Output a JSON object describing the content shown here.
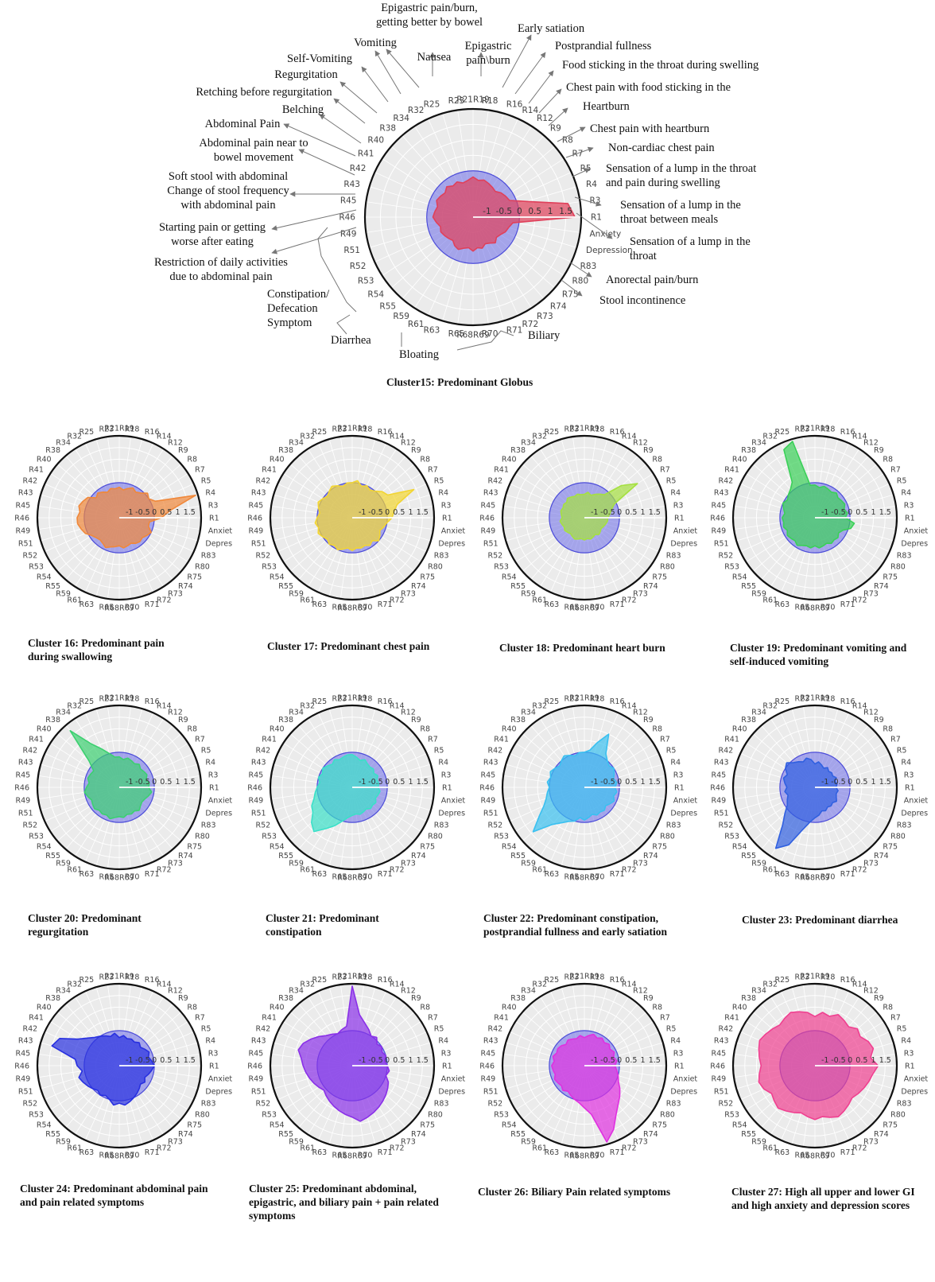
{
  "axes": [
    "R21R19",
    "R18",
    "R16",
    "R14",
    "R12",
    "R9",
    "R8",
    "R7",
    "R5",
    "R4",
    "R3",
    "R1",
    "Anxiety",
    "Depression",
    "R83",
    "R80",
    "R75",
    "R74",
    "R73",
    "R72",
    "R71",
    "R70",
    "R68R69",
    "R65",
    "R63",
    "R61",
    "R59",
    "R55",
    "R54",
    "R53",
    "R52",
    "R51",
    "R49",
    "R46",
    "R45",
    "R43",
    "R42",
    "R41",
    "R40",
    "R38",
    "R34",
    "R32",
    "R25",
    "R23"
  ],
  "small_axes": [
    "R21R19",
    "R18",
    "R16",
    "R14",
    "R12",
    "R9",
    "R8",
    "R7",
    "R5",
    "R4",
    "R3",
    "R1",
    "Anxiety",
    "Depression",
    "R83",
    "R80",
    "R75",
    "R74",
    "R73",
    "R72",
    "R71",
    "R70",
    "R68R69",
    "R65",
    "R63",
    "R61",
    "R59",
    "R55",
    "R54",
    "R53",
    "R52",
    "R51",
    "R49",
    "R46",
    "R45",
    "R43",
    "R42",
    "R41",
    "R40",
    "R38",
    "R34",
    "R32",
    "R25",
    "R23"
  ],
  "main_callouts": [
    {
      "axis": "R23",
      "text": "Nausea"
    },
    {
      "axis": "R25",
      "text": "Epigastric pain/burn, getting better by bowel"
    },
    {
      "axis": "R18",
      "text": "Epigastric pain\\burn"
    },
    {
      "axis": "R16",
      "text": "Early satiation"
    },
    {
      "axis": "R14",
      "text": "Postprandial fullness"
    },
    {
      "axis": "R12",
      "text": "Food sticking in the throat during swelling"
    },
    {
      "axis": "R9",
      "text": "Chest pain with food sticking in the"
    },
    {
      "axis": "R8",
      "text": "Heartburn"
    },
    {
      "axis": "R7",
      "text": "Chest pain with heartburn"
    },
    {
      "axis": "R5",
      "text": "Non-cardiac chest pain"
    },
    {
      "axis": "R4",
      "text": "Sensation of a lump in the throat and pain during swelling"
    },
    {
      "axis": "R3",
      "text": "Sensation of a lump in the throat between meals"
    },
    {
      "axis": "R1",
      "text": "Sensation of a lump in the throat"
    },
    {
      "axis": "R83",
      "text": "Anorectal pain/burn"
    },
    {
      "axis": "R80",
      "text": "Stool incontinence"
    },
    {
      "axis": "R32",
      "text": "Vomiting"
    },
    {
      "axis": "R34",
      "text": "Self-Vomiting"
    },
    {
      "axis": "R38",
      "text": "Regurgitation"
    },
    {
      "axis": "R40",
      "text": "Retching before regurgitation"
    },
    {
      "axis": "R41",
      "text": "Belching"
    },
    {
      "axis": "R42",
      "text": "Abdominal Pain"
    },
    {
      "axis": "R43",
      "text": "Abdominal pain near to bowel movement"
    },
    {
      "axis": "R45",
      "text": "Soft stool with abdominal Change of stool frequency with abdominal pain"
    },
    {
      "axis": "R46",
      "text": "Starting pain or getting worse after eating"
    },
    {
      "axis": "R49",
      "text": "Restriction of daily activities due to abdominal pain"
    },
    {
      "axis": "group-constipation",
      "text": "Constipation/ Defecation Symptom"
    },
    {
      "axis": "group-diarrhea",
      "text": "Diarrhea"
    },
    {
      "axis": "group-bloating",
      "text": "Bloating"
    },
    {
      "axis": "group-biliary",
      "text": "Biliary"
    }
  ],
  "chart_data": [
    {
      "id": "c15",
      "type": "radar",
      "title": "Cluster15: Predominant Globus",
      "color": "#e0405a",
      "rlim": [
        -1.5,
        2
      ],
      "ticks": [
        "-1",
        "-0.5",
        "0",
        "0.5",
        "1",
        "1.5"
      ],
      "baseline": {
        "value": 0,
        "color": "#6f6fe0"
      },
      "values": [
        -0.2,
        -0.3,
        -0.25,
        -0.3,
        -0.35,
        -0.4,
        -0.3,
        -0.25,
        -0.2,
        0.3,
        1.6,
        1.8,
        -0.2,
        -0.3,
        -0.35,
        -0.45,
        -0.5,
        -0.4,
        -0.5,
        -0.55,
        -0.45,
        -0.5,
        -0.4,
        -0.5,
        -0.45,
        -0.35,
        -0.4,
        -0.5,
        -0.45,
        -0.4,
        -0.35,
        -0.4,
        -0.3,
        -0.2,
        -0.25,
        -0.3,
        -0.2,
        -0.25,
        -0.3,
        -0.2,
        -0.3,
        -0.25,
        -0.35,
        -0.3
      ]
    },
    {
      "id": "c16",
      "type": "radar",
      "title": "Cluster 16: Predominant pain during swallowing",
      "color": "#f0883a",
      "rlim": [
        -1.5,
        2
      ],
      "ticks": [
        "-1",
        "-0.5",
        "0",
        "0.5",
        "1",
        "1.5"
      ],
      "values": [
        -0.2,
        -0.3,
        -0.2,
        -0.1,
        -0.2,
        -0.1,
        0.1,
        0.0,
        0.2,
        1.9,
        0.7,
        0.3,
        -0.2,
        -0.2,
        0.0,
        -0.1,
        -0.2,
        -0.15,
        -0.2,
        -0.3,
        -0.25,
        -0.2,
        -0.3,
        -0.25,
        -0.2,
        -0.1,
        -0.2,
        -0.25,
        -0.2,
        -0.1,
        0.1,
        0.2,
        0.3,
        0.3,
        0.2,
        0.3,
        0.2,
        0.1,
        -0.2,
        -0.1,
        -0.2,
        -0.3,
        -0.2,
        -0.25
      ]
    },
    {
      "id": "c17",
      "type": "radar",
      "title": "Cluster 17: Predominant chest pain",
      "color": "#f2d532",
      "rlim": [
        -1.5,
        2
      ],
      "ticks": [
        "-1",
        "-0.5",
        "0",
        "0.5",
        "1",
        "1.5"
      ],
      "values": [
        0.0,
        0.1,
        -0.1,
        0.0,
        -0.1,
        0.0,
        0.2,
        0.3,
        1.4,
        0.5,
        0.3,
        0.2,
        0.0,
        -0.1,
        -0.2,
        -0.1,
        0.0,
        -0.2,
        -0.1,
        -0.2,
        -0.15,
        -0.2,
        -0.1,
        -0.2,
        -0.1,
        0.0,
        -0.1,
        0.0,
        -0.1,
        0.0,
        0.1,
        0.0,
        0.1,
        0.0,
        -0.1,
        0.0,
        0.1,
        0.0,
        -0.1,
        0.0,
        0.1,
        0.0,
        -0.1,
        0.0
      ]
    },
    {
      "id": "c18",
      "type": "radar",
      "title": "Cluster 18: Predominant heart burn",
      "color": "#a5e040",
      "rlim": [
        -1.5,
        2
      ],
      "ticks": [
        "-1",
        "-0.5",
        "0",
        "0.5",
        "1",
        "1.5"
      ],
      "values": [
        -0.5,
        -0.4,
        -0.5,
        -0.4,
        -0.3,
        -0.2,
        0.6,
        1.2,
        -0.1,
        -0.3,
        -0.4,
        -0.5,
        -0.5,
        -0.55,
        -0.6,
        -0.65,
        -0.6,
        -0.55,
        -0.65,
        -0.6,
        -0.55,
        -0.6,
        -0.55,
        -0.6,
        -0.55,
        -0.5,
        -0.55,
        -0.6,
        -0.55,
        -0.5,
        -0.55,
        -0.5,
        -0.45,
        -0.55,
        -0.5,
        -0.45,
        -0.5,
        -0.45,
        -0.5,
        -0.4,
        -0.45,
        -0.5,
        -0.45,
        -0.5
      ]
    },
    {
      "id": "c19",
      "type": "radar",
      "title": "Cluster 19: Predominant vomiting and self-induced vomiting",
      "color": "#3ad058",
      "rlim": [
        -1.5,
        2
      ],
      "ticks": [
        "-1",
        "-0.5",
        "0",
        "0.5",
        "1",
        "1.5"
      ],
      "values": [
        -0.1,
        -0.2,
        -0.1,
        -0.15,
        -0.2,
        -0.1,
        -0.2,
        -0.15,
        -0.1,
        -0.2,
        -0.1,
        -0.2,
        0.2,
        0.1,
        -0.2,
        -0.3,
        -0.2,
        -0.25,
        -0.2,
        -0.3,
        -0.25,
        -0.2,
        -0.3,
        -0.2,
        -0.25,
        -0.2,
        -0.1,
        -0.2,
        -0.15,
        -0.1,
        -0.2,
        -0.1,
        -0.15,
        -0.1,
        -0.2,
        -0.1,
        0.0,
        -0.1,
        0.0,
        0.1,
        0.3,
        1.7,
        1.9,
        -0.1
      ]
    },
    {
      "id": "c20",
      "type": "radar",
      "title": "Cluster 20: Predominant regurgitation",
      "color": "#3cd070",
      "rlim": [
        -1.5,
        2
      ],
      "ticks": [
        "-1",
        "-0.5",
        "0",
        "0.5",
        "1",
        "1.5"
      ],
      "values": [
        -0.2,
        -0.3,
        -0.2,
        -0.25,
        -0.3,
        -0.2,
        -0.3,
        -0.25,
        -0.2,
        -0.3,
        -0.2,
        -0.25,
        -0.1,
        -0.2,
        -0.3,
        -0.35,
        -0.3,
        -0.2,
        -0.3,
        -0.25,
        -0.3,
        -0.2,
        -0.25,
        -0.2,
        -0.1,
        -0.2,
        -0.15,
        -0.2,
        -0.1,
        -0.15,
        -0.2,
        -0.1,
        0.0,
        -0.1,
        -0.2,
        -0.1,
        -0.15,
        -0.2,
        0.2,
        1.7,
        0.7,
        0.3,
        0.0,
        -0.2
      ]
    },
    {
      "id": "c21",
      "type": "radar",
      "title": "Cluster 21: Predominant constipation",
      "color": "#3ae0c8",
      "rlim": [
        -1.5,
        2
      ],
      "ticks": [
        "-1",
        "-0.5",
        "0",
        "0.5",
        "1",
        "1.5"
      ],
      "values": [
        -0.1,
        -0.2,
        -0.3,
        -0.2,
        -0.3,
        -0.35,
        -0.3,
        -0.4,
        -0.3,
        -0.4,
        -0.35,
        -0.4,
        -0.3,
        -0.35,
        -0.4,
        -0.3,
        -0.35,
        -0.3,
        -0.4,
        -0.35,
        -0.3,
        -0.35,
        -0.3,
        -0.2,
        0.0,
        0.3,
        0.6,
        1.0,
        0.8,
        0.5,
        0.4,
        0.2,
        0.1,
        0.0,
        -0.1,
        0.0,
        -0.1,
        0.0,
        -0.1,
        -0.2,
        -0.1,
        -0.2,
        -0.15,
        -0.1
      ]
    },
    {
      "id": "c22",
      "type": "radar",
      "title": "Cluster 22: Predominant constipation, postprandial fullness and early satiation",
      "color": "#3ac0f0",
      "rlim": [
        -1.5,
        2
      ],
      "ticks": [
        "-1",
        "-0.5",
        "0",
        "0.5",
        "1",
        "1.5"
      ],
      "values": [
        0.0,
        0.1,
        0.5,
        1.0,
        0.2,
        0.0,
        -0.1,
        0.0,
        -0.1,
        -0.2,
        -0.1,
        -0.2,
        -0.1,
        -0.2,
        -0.1,
        -0.2,
        -0.3,
        -0.2,
        -0.25,
        -0.2,
        -0.3,
        -0.2,
        -0.1,
        -0.2,
        0.0,
        0.1,
        0.3,
        0.6,
        1.4,
        0.8,
        0.4,
        0.2,
        0.1,
        0.0,
        0.1,
        0.0,
        0.1,
        0.0,
        -0.1,
        0.0,
        0.1,
        0.0,
        -0.1,
        0.0
      ]
    },
    {
      "id": "c23",
      "type": "radar",
      "title": "Cluster 23: Predominant diarrhea",
      "color": "#3060e0",
      "rlim": [
        -1.5,
        2
      ],
      "ticks": [
        "-1",
        "-0.5",
        "0",
        "0.5",
        "1",
        "1.5"
      ],
      "values": [
        -0.5,
        -0.4,
        -0.5,
        -0.6,
        -0.5,
        -0.6,
        -0.55,
        -0.6,
        -0.5,
        -0.6,
        -0.55,
        -0.6,
        -0.5,
        -0.55,
        -0.5,
        -0.4,
        -0.5,
        -0.45,
        -0.5,
        -0.4,
        -0.45,
        -0.3,
        -0.2,
        0.0,
        0.4,
        1.2,
        1.6,
        0.6,
        0.2,
        -0.1,
        -0.2,
        -0.3,
        -0.2,
        -0.3,
        -0.2,
        -0.1,
        -0.2,
        0.0,
        0.1,
        -0.1,
        -0.2,
        -0.3,
        -0.2,
        -0.3
      ]
    },
    {
      "id": "c24",
      "type": "radar",
      "title": "Cluster 24: Predominant abdominal pain and pain related symptoms",
      "color": "#2830e0",
      "rlim": [
        -1.5,
        2
      ],
      "ticks": [
        "-1",
        "-0.5",
        "0",
        "0.5",
        "1",
        "1.5"
      ],
      "values": [
        -0.3,
        -0.2,
        -0.3,
        -0.25,
        -0.3,
        -0.2,
        -0.3,
        -0.2,
        -0.1,
        -0.2,
        -0.1,
        0.0,
        -0.1,
        -0.2,
        -0.3,
        -0.2,
        -0.3,
        -0.2,
        -0.1,
        0.0,
        0.1,
        0.2,
        0.1,
        0.2,
        0.0,
        -0.1,
        0.0,
        -0.1,
        0.0,
        0.1,
        0.2,
        0.3,
        0.1,
        0.3,
        0.4,
        1.5,
        1.3,
        0.6,
        0.3,
        0.1,
        0.0,
        -0.1,
        -0.2,
        -0.1
      ]
    },
    {
      "id": "c25",
      "type": "radar",
      "title": "Cluster 25: Predominant abdominal, epigastric, and biliary pain + pain related symptoms",
      "color": "#8a30e8",
      "rlim": [
        -1.5,
        2
      ],
      "ticks": [
        "-1",
        "-0.5",
        "0",
        "0.5",
        "1",
        "1.5"
      ],
      "values": [
        1.9,
        0.7,
        0.4,
        0.2,
        0.0,
        0.1,
        -0.1,
        0.0,
        -0.1,
        0.0,
        -0.1,
        0.0,
        0.1,
        0.0,
        0.2,
        0.3,
        0.4,
        0.5,
        0.6,
        0.7,
        0.8,
        0.9,
        0.7,
        0.6,
        0.5,
        0.4,
        0.3,
        0.2,
        0.1,
        0.2,
        0.3,
        0.4,
        0.5,
        0.6,
        0.7,
        0.9,
        0.8,
        0.6,
        0.4,
        0.2,
        0.1,
        0.0,
        0.1,
        0.2
      ]
    },
    {
      "id": "c26",
      "type": "radar",
      "title": "Cluster 26: Biliary Pain related symptoms",
      "color": "#e030e0",
      "rlim": [
        -1.5,
        2
      ],
      "ticks": [
        "-1",
        "-0.5",
        "0",
        "0.5",
        "1",
        "1.5"
      ],
      "values": [
        -0.3,
        -0.2,
        -0.1,
        -0.2,
        -0.1,
        -0.2,
        -0.1,
        -0.2,
        -0.1,
        -0.2,
        -0.1,
        -0.2,
        -0.1,
        0.0,
        0.1,
        0.3,
        0.5,
        0.7,
        1.0,
        1.5,
        1.9,
        0.6,
        0.3,
        0.1,
        0.0,
        -0.1,
        -0.2,
        -0.1,
        -0.2,
        -0.15,
        -0.1,
        -0.2,
        -0.15,
        -0.1,
        -0.2,
        -0.1,
        -0.2,
        -0.15,
        -0.2,
        -0.3,
        -0.2,
        -0.25,
        -0.3,
        -0.2
      ]
    },
    {
      "id": "c27",
      "type": "radar",
      "title": "Cluster 27: High all upper and lower GI and high anxiety and depression scores",
      "color": "#f04090",
      "rlim": [
        -1.5,
        2
      ],
      "ticks": [
        "-1",
        "-0.5",
        "0",
        "0.5",
        "1",
        "1.5"
      ],
      "values": [
        0.6,
        0.8,
        0.7,
        0.9,
        0.8,
        0.7,
        0.9,
        0.8,
        1.0,
        1.1,
        0.9,
        1.2,
        1.0,
        0.9,
        0.8,
        0.7,
        0.6,
        0.7,
        0.8,
        0.9,
        0.8,
        0.7,
        0.8,
        0.7,
        0.6,
        0.7,
        0.8,
        0.9,
        0.8,
        0.7,
        0.9,
        1.0,
        0.9,
        0.8,
        0.9,
        1.0,
        1.1,
        1.0,
        0.9,
        0.8,
        0.9,
        1.0,
        0.9,
        0.8
      ]
    }
  ]
}
